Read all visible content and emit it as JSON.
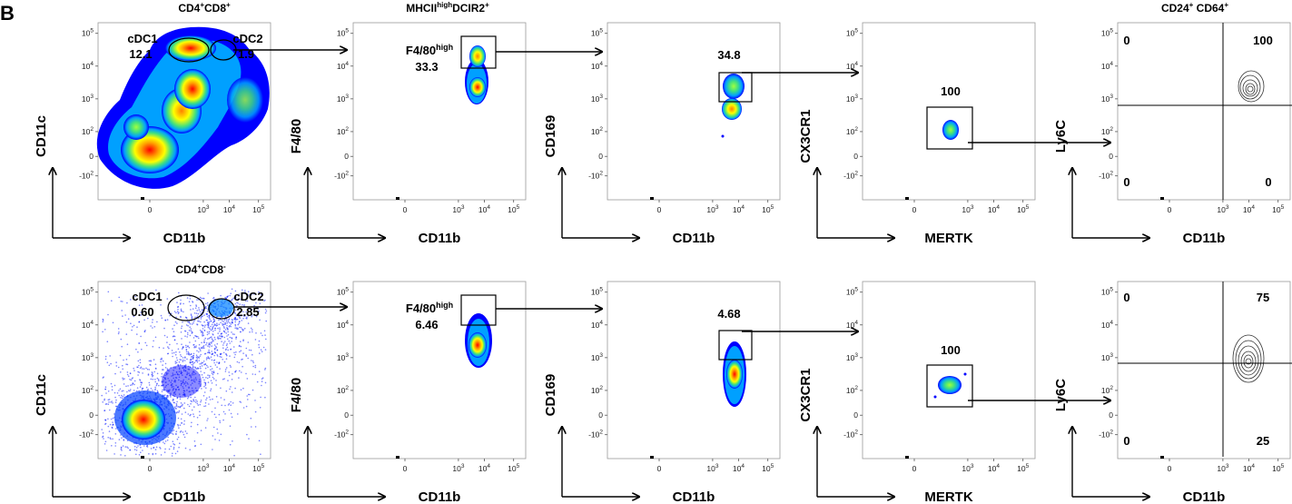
{
  "figure_label": "B",
  "row_titles": {
    "top": {
      "main": "CD4",
      "sup1": "+",
      "mid": "CD8",
      "sup2": "+"
    },
    "bottom": {
      "main": "CD4",
      "sup1": "+",
      "mid": "CD8",
      "sup2": "-"
    }
  },
  "column_titles": {
    "col2": {
      "a": "MHCII",
      "sup": "high",
      "b": "DCIR2",
      "sup2": "+"
    },
    "col5": {
      "a": "CD24",
      "sup": "+",
      "b": " CD64",
      "sup2": "+"
    }
  },
  "tick_labels": {
    "y": [
      "10",
      "10",
      "10",
      "10",
      "0",
      "-10"
    ],
    "y_exp": [
      "5",
      "4",
      "3",
      "2",
      "",
      "2"
    ],
    "x": [
      "0",
      "10",
      "10",
      "10"
    ],
    "x_exp": [
      "",
      "3",
      "4",
      "5"
    ]
  },
  "gate_labels": {
    "cdc1": "cDC1",
    "cdc2": "cDC2",
    "f480": "F4/80",
    "f480_sup": "high"
  },
  "quadrant_values": {
    "top": {
      "ul": "0",
      "ur": "100",
      "ll": "0",
      "lr": "0"
    },
    "bottom": {
      "ul": "0",
      "ur": "75",
      "ll": "0",
      "lr": "25"
    }
  },
  "chart_data": [
    {
      "type": "scatter",
      "row": 1,
      "panel": 1,
      "title": "CD4+CD8+",
      "xlabel": "CD11b",
      "ylabel": "CD11c",
      "gates": [
        {
          "name": "cDC1",
          "value": "12.1"
        },
        {
          "name": "cDC2",
          "value": "1.9"
        }
      ]
    },
    {
      "type": "scatter",
      "row": 1,
      "panel": 2,
      "title": "MHCIIhighDCIR2+",
      "xlabel": "CD11b",
      "ylabel": "F4/80",
      "gates": [
        {
          "name": "F4/80high",
          "value": "33.3"
        }
      ]
    },
    {
      "type": "scatter",
      "row": 1,
      "panel": 3,
      "xlabel": "CD11b",
      "ylabel": "CD169",
      "gates": [
        {
          "value": "34.8"
        }
      ]
    },
    {
      "type": "scatter",
      "row": 1,
      "panel": 4,
      "xlabel": "MERTK",
      "ylabel": "CX3CR1",
      "gates": [
        {
          "value": "100"
        }
      ]
    },
    {
      "type": "scatter",
      "row": 1,
      "panel": 5,
      "title": "CD24+ CD64+",
      "xlabel": "CD11b",
      "ylabel": "Ly6C",
      "quadrants": {
        "upper_left": 0,
        "upper_right": 100,
        "lower_left": 0,
        "lower_right": 0
      }
    },
    {
      "type": "scatter",
      "row": 2,
      "panel": 1,
      "title": "CD4+CD8-",
      "xlabel": "CD11b",
      "ylabel": "CD11c",
      "gates": [
        {
          "name": "cDC1",
          "value": "0.60"
        },
        {
          "name": "cDC2",
          "value": "2.85"
        }
      ]
    },
    {
      "type": "scatter",
      "row": 2,
      "panel": 2,
      "xlabel": "CD11b",
      "ylabel": "F4/80",
      "gates": [
        {
          "name": "F4/80high",
          "value": "6.46"
        }
      ]
    },
    {
      "type": "scatter",
      "row": 2,
      "panel": 3,
      "xlabel": "CD11b",
      "ylabel": "CD169",
      "gates": [
        {
          "value": "4.68"
        }
      ]
    },
    {
      "type": "scatter",
      "row": 2,
      "panel": 4,
      "xlabel": "MERTK",
      "ylabel": "CX3CR1",
      "gates": [
        {
          "value": "100"
        }
      ]
    },
    {
      "type": "scatter",
      "row": 2,
      "panel": 5,
      "xlabel": "CD11b",
      "ylabel": "Ly6C",
      "quadrants": {
        "upper_left": 0,
        "upper_right": 75,
        "lower_left": 0,
        "lower_right": 25
      }
    }
  ]
}
